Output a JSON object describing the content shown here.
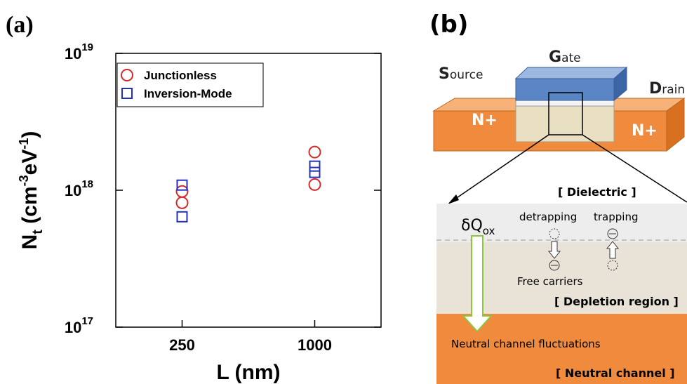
{
  "chart_data": {
    "type": "scatter",
    "panel_label": "(a)",
    "xlabel": "L (nm)",
    "ylabel": {
      "symbol": "N",
      "sub": "t",
      "open": " (cm",
      "sup1": "-3",
      "unit2": "eV",
      "sup2": "-1",
      "close": ")"
    },
    "categories": [
      "250",
      "1000"
    ],
    "log_y": true,
    "ylim": [
      1e+17,
      1e+19
    ],
    "yticks": [
      {
        "value": 1e+17,
        "label": "10",
        "sup": "17"
      },
      {
        "value": 1e+18,
        "label": "10",
        "sup": "18"
      },
      {
        "value": 1e+19,
        "label": "10",
        "sup": "19"
      }
    ],
    "legend": "upper left",
    "series": [
      {
        "name": "Junctionless",
        "color": "#d42a2a",
        "marker": "circle",
        "values": [
          [
            9.8e+17,
            8.1e+17
          ],
          [
            1.9e+18,
            1.1e+18
          ]
        ]
      },
      {
        "name": "Inversion-Mode",
        "color": "#2430c0",
        "marker": "square",
        "values": [
          [
            1.09e+18,
            6.4e+17
          ],
          [
            1.5e+18,
            1.35e+18
          ]
        ]
      }
    ]
  },
  "diagram": {
    "panel_label": "(b)",
    "source": {
      "initial": "S",
      "rest": "ource"
    },
    "gate": {
      "initial": "G",
      "rest": "ate"
    },
    "drain": {
      "initial": "D",
      "rest": "rain"
    },
    "doping_left": "N+",
    "doping_right": "N+",
    "dielectric": "[ Dielectric ]",
    "charge": {
      "main": "δQ",
      "sub": "ox"
    },
    "detrapping": "detrapping",
    "trapping": "trapping",
    "free_carriers": "Free carriers",
    "depletion": "[ Depletion region ]",
    "fluctuations": "Neutral channel fluctuations",
    "neutral": "[ Neutral channel ]"
  }
}
